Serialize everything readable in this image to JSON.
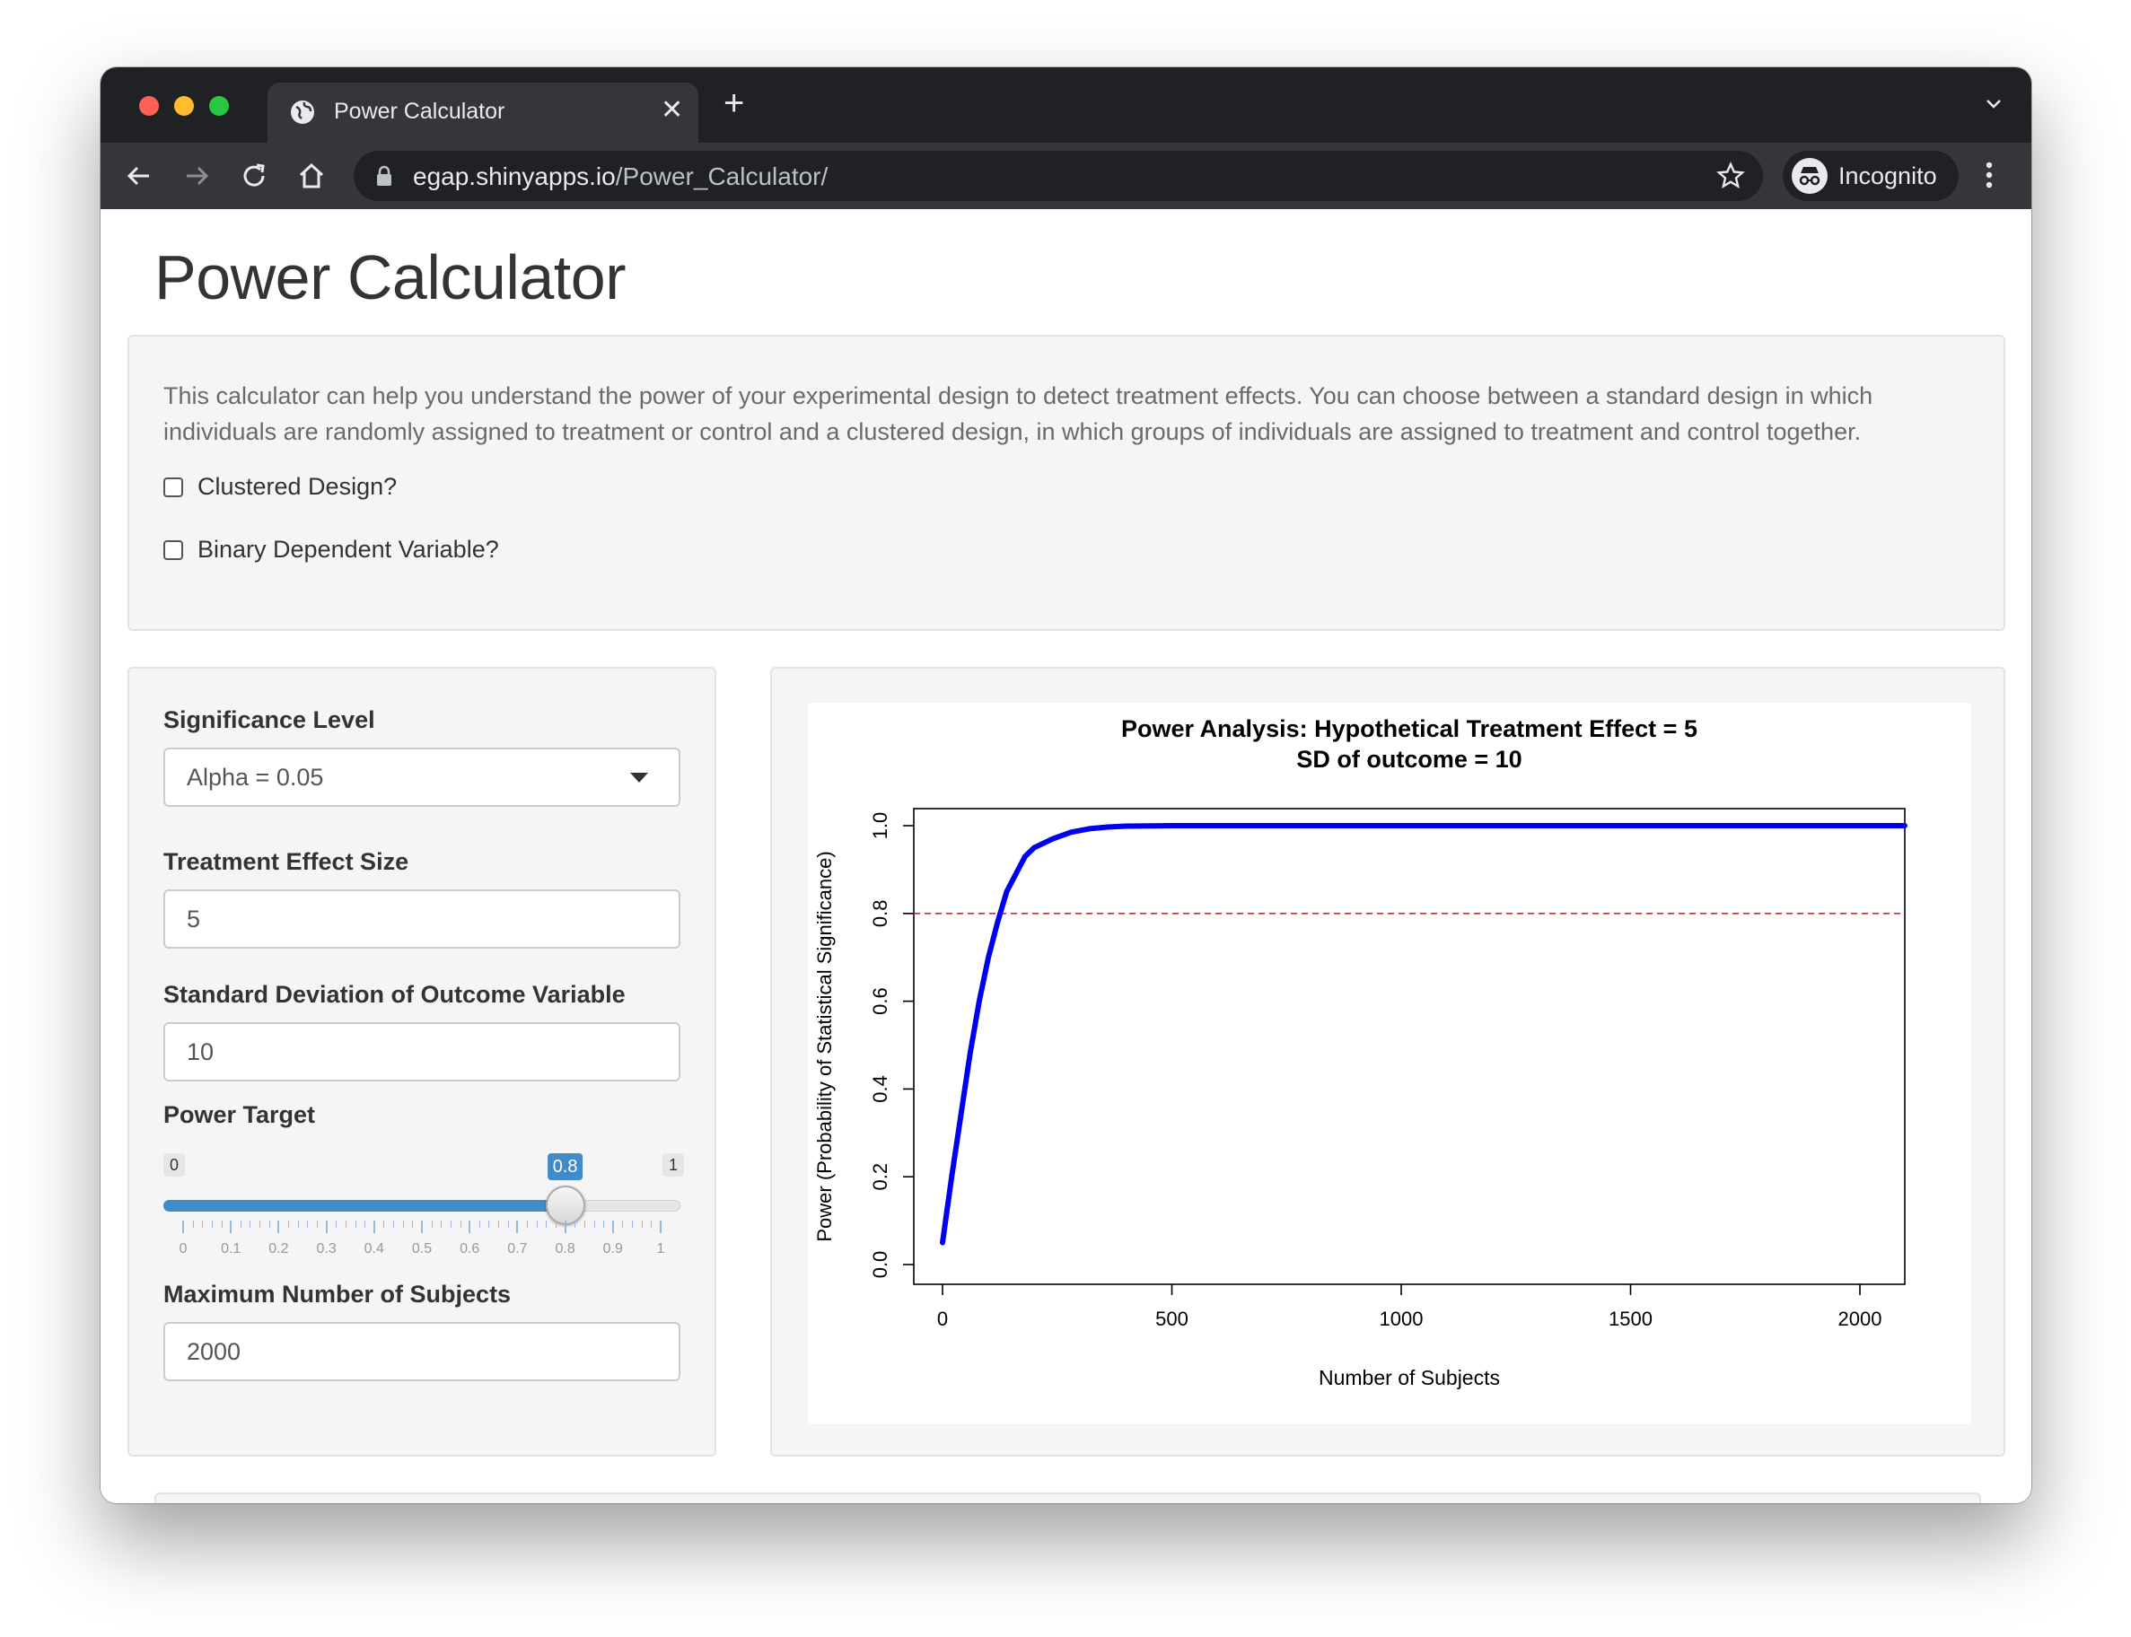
{
  "browser": {
    "tab_title": "Power Calculator",
    "url_host": "egap.shinyapps.io",
    "url_path": "/Power_Calculator/",
    "profile_label": "Incognito",
    "icons": [
      "globe-icon",
      "close-icon",
      "plus-icon",
      "chevron-down-icon",
      "back-icon",
      "forward-icon",
      "reload-icon",
      "home-icon",
      "lock-icon",
      "star-icon",
      "incognito-icon",
      "more-vert-icon"
    ]
  },
  "page": {
    "title": "Power Calculator",
    "intro": "This calculator can help you understand the power of your experimental design to detect treatment effects. You can choose between a standard design in which individuals are randomly assigned to treatment or control and a clustered design, in which groups of individuals are assigned to treatment and control together.",
    "checkboxes": [
      {
        "label": "Clustered Design?",
        "checked": false
      },
      {
        "label": "Binary Dependent Variable?",
        "checked": false
      }
    ]
  },
  "sidebar": {
    "significance_label": "Significance Level",
    "significance_value": "Alpha = 0.05",
    "effect_label": "Treatment Effect Size",
    "effect_value": "5",
    "sd_label": "Standard Deviation of Outcome Variable",
    "sd_value": "10",
    "power_label": "Power Target",
    "power_slider": {
      "min": "0",
      "max": "1",
      "value": 0.8,
      "value_label": "0.8",
      "ticks": [
        "0",
        "0.1",
        "0.2",
        "0.3",
        "0.4",
        "0.5",
        "0.6",
        "0.7",
        "0.8",
        "0.9",
        "1"
      ]
    },
    "max_subjects_label": "Maximum Number of Subjects",
    "max_subjects_value": "2000"
  },
  "colors": {
    "accent": "#428bca",
    "curve": "#0000ee",
    "reference_line": "#e0202a"
  },
  "chart_data": {
    "type": "line",
    "title": "Power Analysis: Hypothetical Treatment Effect = 5",
    "subtitle": "SD of outcome = 10",
    "xlabel": "Number of Subjects",
    "ylabel": "Power (Probability of Statistical Significance)",
    "xlim": [
      0,
      2000
    ],
    "ylim": [
      0.0,
      1.0
    ],
    "xticks": [
      0,
      500,
      1000,
      1500,
      2000
    ],
    "xtick_labels": [
      "0",
      "500",
      "1000",
      "1500",
      "2000"
    ],
    "yticks": [
      0.0,
      0.2,
      0.4,
      0.6,
      0.8,
      1.0
    ],
    "ytick_labels": [
      "0.0",
      "0.2",
      "0.4",
      "0.6",
      "0.8",
      "1.0"
    ],
    "series": [
      {
        "x": [
          0,
          20,
          40,
          60,
          80,
          100,
          120,
          140,
          160,
          180,
          200,
          240,
          280,
          320,
          360,
          400,
          500,
          750,
          1000,
          1500,
          2000
        ],
        "y": [
          0.05,
          0.2,
          0.34,
          0.48,
          0.6,
          0.7,
          0.78,
          0.85,
          0.89,
          0.93,
          0.95,
          0.97,
          0.985,
          0.993,
          0.997,
          0.999,
          1.0,
          1.0,
          1.0,
          1.0,
          1.0
        ]
      }
    ],
    "reference_lines": [
      {
        "axis": "y",
        "value": 0.8,
        "style": "dashed"
      }
    ]
  }
}
